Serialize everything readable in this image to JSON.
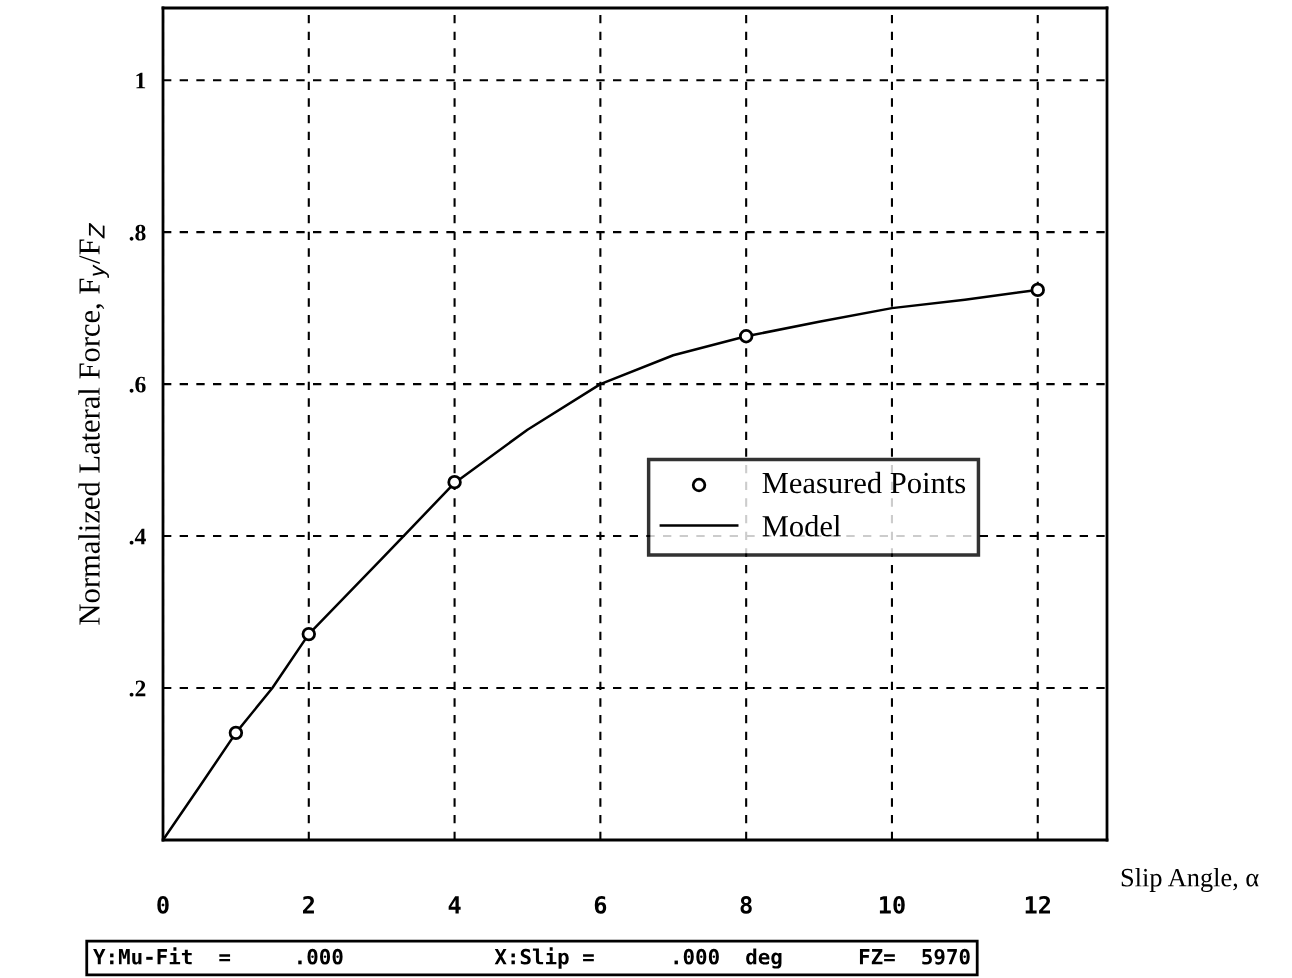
{
  "chart_data": {
    "type": "scatter",
    "xlabel": "Slip Angle, α",
    "ylabel": "Normalized Lateral Force, F$_{y}$/F$_{Z}$",
    "xlim": [
      0,
      12.95
    ],
    "ylim": [
      0,
      1.095
    ],
    "xticks": [
      0,
      2,
      4,
      6,
      8,
      10,
      12
    ],
    "yticks": [
      {
        "value": 0.2,
        "label": ".2"
      },
      {
        "value": 0.4,
        "label": ".4"
      },
      {
        "value": 0.6,
        "label": ".6"
      },
      {
        "value": 0.8,
        "label": ".8"
      },
      {
        "value": 1,
        "label": "1"
      }
    ],
    "grid": true,
    "legend": "center right",
    "series": [
      {
        "name": "Measured Points",
        "marker": "circle",
        "color": "#000000",
        "x": [
          1,
          2,
          4,
          8,
          12
        ],
        "values": [
          0.141,
          0.271,
          0.471,
          0.663,
          0.724
        ]
      },
      {
        "name": "Model",
        "type": "line",
        "marker": "none",
        "line_style": "solid",
        "color": "#000000",
        "x": [
          0,
          0.5,
          1,
          1.5,
          2,
          3,
          3.3,
          4,
          5,
          6,
          7,
          8,
          9,
          10,
          11,
          12
        ],
        "values": [
          0,
          0.07,
          0.141,
          0.2,
          0.271,
          0.37,
          0.4,
          0.47,
          0.54,
          0.6,
          0.638,
          0.663,
          0.682,
          0.7,
          0.711,
          0.724
        ]
      }
    ],
    "annotations": [
      "Y:Mu-Fit  =     .000            X:Slip =      .000  deg      FZ=  5970"
    ]
  }
}
